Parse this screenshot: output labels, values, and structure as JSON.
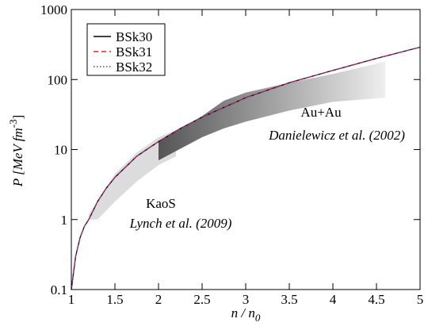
{
  "chart_data": {
    "type": "line",
    "xlabel": "n / n",
    "xlabel_sub": "0",
    "ylabel": "P [MeV fm",
    "ylabel_sup": "-3",
    "ylabel_end": "]",
    "xlim": [
      1,
      5
    ],
    "ylim": [
      0.1,
      1000
    ],
    "log_y": true,
    "xticks": [
      1,
      1.5,
      2,
      2.5,
      3,
      3.5,
      4,
      4.5,
      5
    ],
    "yticks": [
      0.1,
      1,
      10,
      100,
      1000
    ],
    "legend": "upper left",
    "x": [
      1,
      1.05,
      1.1,
      1.15,
      1.2,
      1.3,
      1.4,
      1.5,
      1.75,
      2,
      2.25,
      2.5,
      3,
      3.5,
      4,
      4.5,
      5
    ],
    "series": [
      {
        "name": "BSk30",
        "color": "#000000",
        "dash": "solid",
        "values": [
          0.1,
          0.3,
          0.55,
          0.8,
          1.0,
          1.8,
          2.8,
          4.0,
          8,
          13,
          20,
          29,
          55,
          90,
          135,
          200,
          290
        ]
      },
      {
        "name": "BSk31",
        "color": "#e8242a",
        "dash": "dashed",
        "values": [
          0.1,
          0.3,
          0.55,
          0.8,
          1.0,
          1.8,
          2.8,
          4.0,
          8,
          13,
          20,
          29,
          55,
          90,
          135,
          200,
          290
        ]
      },
      {
        "name": "BSk32",
        "color": "#4040c0",
        "dash": "dotted",
        "values": [
          0.1,
          0.3,
          0.55,
          0.8,
          1.0,
          1.8,
          2.8,
          4.0,
          8,
          13,
          20,
          29,
          55,
          90,
          135,
          200,
          290
        ]
      }
    ],
    "regions": [
      {
        "label": "KaoS",
        "source": "Lynch et al. (2009)",
        "x": [
          1.2,
          1.3,
          1.5,
          1.75,
          2,
          2.2
        ],
        "lower": [
          1,
          1,
          1.8,
          3.5,
          6,
          8
        ],
        "upper": [
          1.2,
          1.8,
          4.5,
          9,
          15,
          19
        ]
      },
      {
        "label": "Au+Au",
        "source": "Danielewicz et al. (2002)",
        "x": [
          2,
          2.5,
          2.75,
          3,
          3.5,
          4,
          4.6
        ],
        "lower": [
          7,
          15,
          20,
          25,
          36,
          48,
          55
        ],
        "upper": [
          13,
          30,
          50,
          65,
          90,
          120,
          180
        ]
      }
    ]
  }
}
